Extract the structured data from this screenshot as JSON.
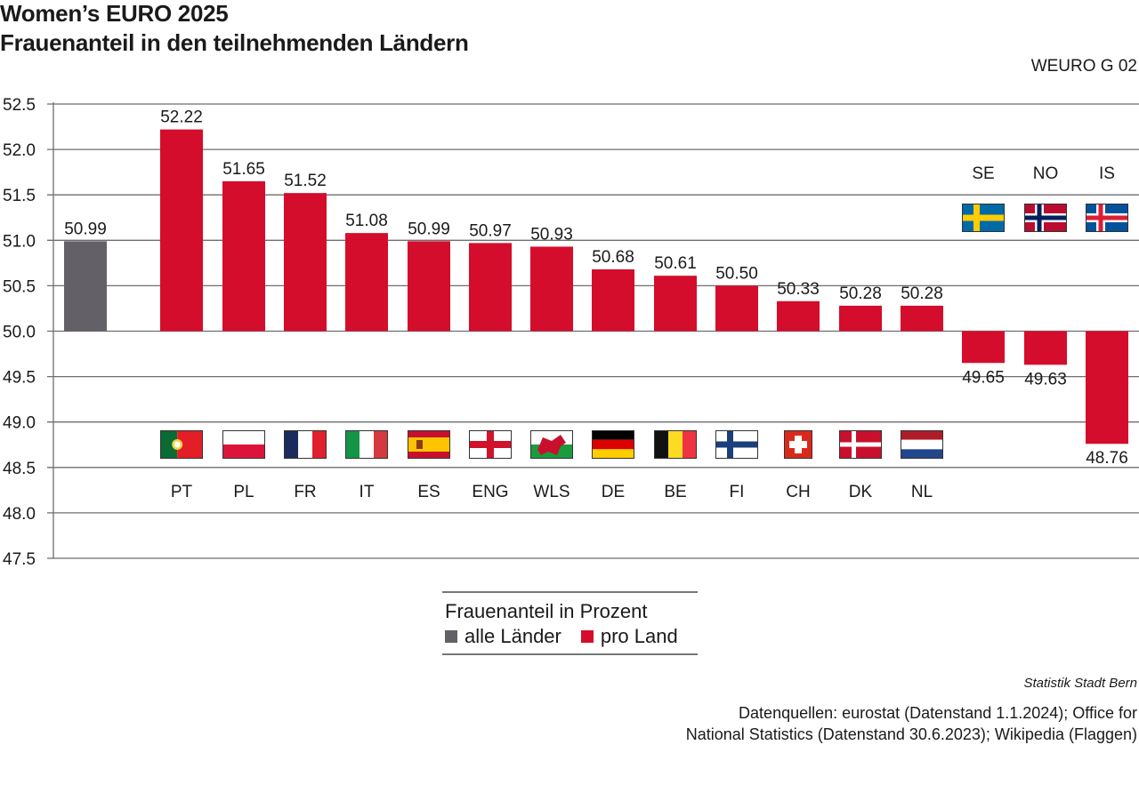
{
  "header": {
    "title": "Women’s EURO 2025",
    "subtitle": "Frauenanteil in den teilnehmenden Ländern",
    "code": "WEURO G 02"
  },
  "legend": {
    "title": "Frauenanteil in Prozent",
    "items": [
      {
        "label": "alle Länder",
        "color": "#636167"
      },
      {
        "label": "pro Land",
        "color": "#d40d2c"
      }
    ]
  },
  "footer": {
    "credit": "Statistik Stadt Bern",
    "sources_line1": "Datenquellen: eurostat (Datenstand 1.1.2024); Office for",
    "sources_line2": "National Statistics (Datenstand 30.6.2023); Wikipedia (Flaggen)"
  },
  "chart_data": {
    "type": "bar",
    "title": "Women’s EURO 2025 – Frauenanteil in den teilnehmenden Ländern",
    "xlabel": "",
    "ylabel": "Frauenanteil in Prozent",
    "baseline": 50.0,
    "ylim": [
      47.5,
      52.5
    ],
    "yticks": [
      "52.5",
      "52.0",
      "51.5",
      "51.0",
      "50.5",
      "50.0",
      "49.5",
      "49.0",
      "48.5",
      "48.0",
      "47.5"
    ],
    "grid": true,
    "legend_position": "bottom-center",
    "categories": [
      "alle Länder",
      "PT",
      "PL",
      "FR",
      "IT",
      "ES",
      "ENG",
      "WLS",
      "DE",
      "BE",
      "FI",
      "CH",
      "DK",
      "NL",
      "SE",
      "NO",
      "IS"
    ],
    "series": [
      {
        "name": "alle Länder",
        "color": "#636167",
        "values": [
          50.99,
          null,
          null,
          null,
          null,
          null,
          null,
          null,
          null,
          null,
          null,
          null,
          null,
          null,
          null,
          null,
          null
        ]
      },
      {
        "name": "pro Land",
        "color": "#d40d2c",
        "values": [
          null,
          52.22,
          51.65,
          51.52,
          51.08,
          50.99,
          50.97,
          50.93,
          50.68,
          50.61,
          50.5,
          50.33,
          50.28,
          50.28,
          49.65,
          49.63,
          48.76
        ]
      }
    ],
    "value_labels": [
      "50.99",
      "52.22",
      "51.65",
      "51.52",
      "51.08",
      "50.99",
      "50.97",
      "50.93",
      "50.68",
      "50.61",
      "50.50",
      "50.33",
      "50.28",
      "50.28",
      "49.65",
      "49.63",
      "48.76"
    ],
    "flags": {
      "PT": "portugal-flag",
      "PL": "poland-flag",
      "FR": "france-flag",
      "IT": "italy-flag",
      "ES": "spain-flag",
      "ENG": "england-flag",
      "WLS": "wales-flag",
      "DE": "germany-flag",
      "BE": "belgium-flag",
      "FI": "finland-flag",
      "CH": "switzerland-flag",
      "DK": "denmark-flag",
      "NL": "netherlands-flag",
      "SE": "sweden-flag",
      "NO": "norway-flag",
      "IS": "iceland-flag"
    }
  }
}
